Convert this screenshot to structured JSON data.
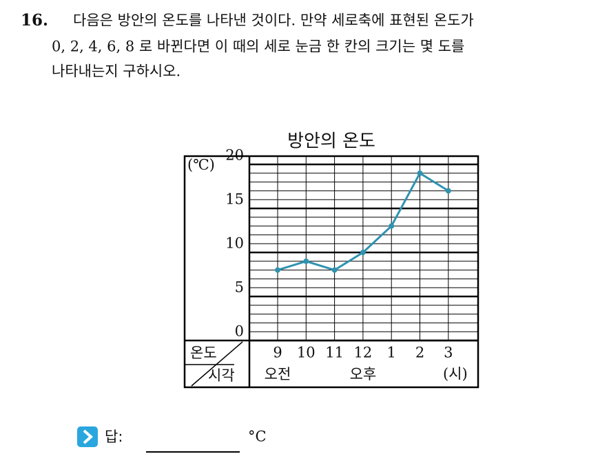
{
  "question": {
    "number": "16.",
    "lines": [
      "다음은 방안의 온도를 나타낸 것이다. 만약 세로축에 표현된 온도가",
      "0, 2, 4, 6, 8 로 바뀐다면 이 때의 세로 눈금 한 칸의 크기는 몇 도를",
      "나타내는지 구하시오."
    ]
  },
  "chart_data": {
    "type": "line",
    "title": "방안의 온도",
    "y_unit": "(℃)",
    "corner_top": "온도",
    "corner_bottom": "시각",
    "categories": [
      "9",
      "10",
      "11",
      "12",
      "1",
      "2",
      "3"
    ],
    "period_labels": [
      "오전",
      "오후",
      "(시)"
    ],
    "series": [
      {
        "color": "#2f93b0",
        "values": [
          8,
          9,
          8,
          10,
          13,
          19,
          17
        ]
      }
    ],
    "ylim": [
      0,
      20
    ],
    "yticks": [
      0,
      5,
      10,
      15,
      20
    ],
    "minor_grid_step": 1,
    "grid": true
  },
  "answer": {
    "label": "답:",
    "unit": "°C"
  }
}
